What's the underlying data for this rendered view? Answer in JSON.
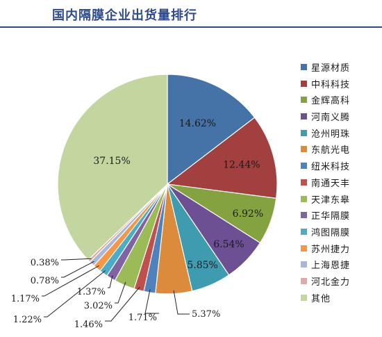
{
  "title": "国内隔膜企业出货量排行",
  "colors": {
    "title": "#2e4a8a"
  },
  "chart_data": {
    "type": "pie",
    "title": "国内隔膜企业出货量排行",
    "legend_position": "right",
    "slices": [
      {
        "name": "星源材质",
        "value": 14.62,
        "label": "14.62%",
        "color": "#4572a7"
      },
      {
        "name": "中科科技",
        "value": 12.44,
        "label": "12.44%",
        "color": "#a23f3f"
      },
      {
        "name": "金辉高科",
        "value": 6.92,
        "label": "6.92%",
        "color": "#84a23f"
      },
      {
        "name": "河南义腾",
        "value": 6.54,
        "label": "6.54%",
        "color": "#6d4f94"
      },
      {
        "name": "沧州明珠",
        "value": 5.85,
        "label": "5.85%",
        "color": "#3e9bb0"
      },
      {
        "name": "东航光电",
        "value": 5.37,
        "label": "5.37%",
        "color": "#dc8a3b"
      },
      {
        "name": "纽米科技",
        "value": 1.71,
        "label": "1.71%",
        "color": "#4f81bd"
      },
      {
        "name": "南通天丰",
        "value": 1.46,
        "label": "1.46%",
        "color": "#c0504d"
      },
      {
        "name": "天津东皋",
        "value": 3.02,
        "label": "3.02%",
        "color": "#9bbb59"
      },
      {
        "name": "正华隔膜",
        "value": 1.37,
        "label": "1.37%",
        "color": "#8064a2"
      },
      {
        "name": "鸿图隔膜",
        "value": 1.22,
        "label": "1.22%",
        "color": "#4bacc6"
      },
      {
        "name": "苏州捷力",
        "value": 1.17,
        "label": "1.17%",
        "color": "#f79646"
      },
      {
        "name": "上海恩捷",
        "value": 0.78,
        "label": "0.78%",
        "color": "#a7b9d8"
      },
      {
        "name": "河北金力",
        "value": 0.38,
        "label": "0.38%",
        "color": "#dfa9a8"
      },
      {
        "name": "其他",
        "value": 37.15,
        "label": "37.15%",
        "color": "#c4d6a0"
      }
    ]
  }
}
